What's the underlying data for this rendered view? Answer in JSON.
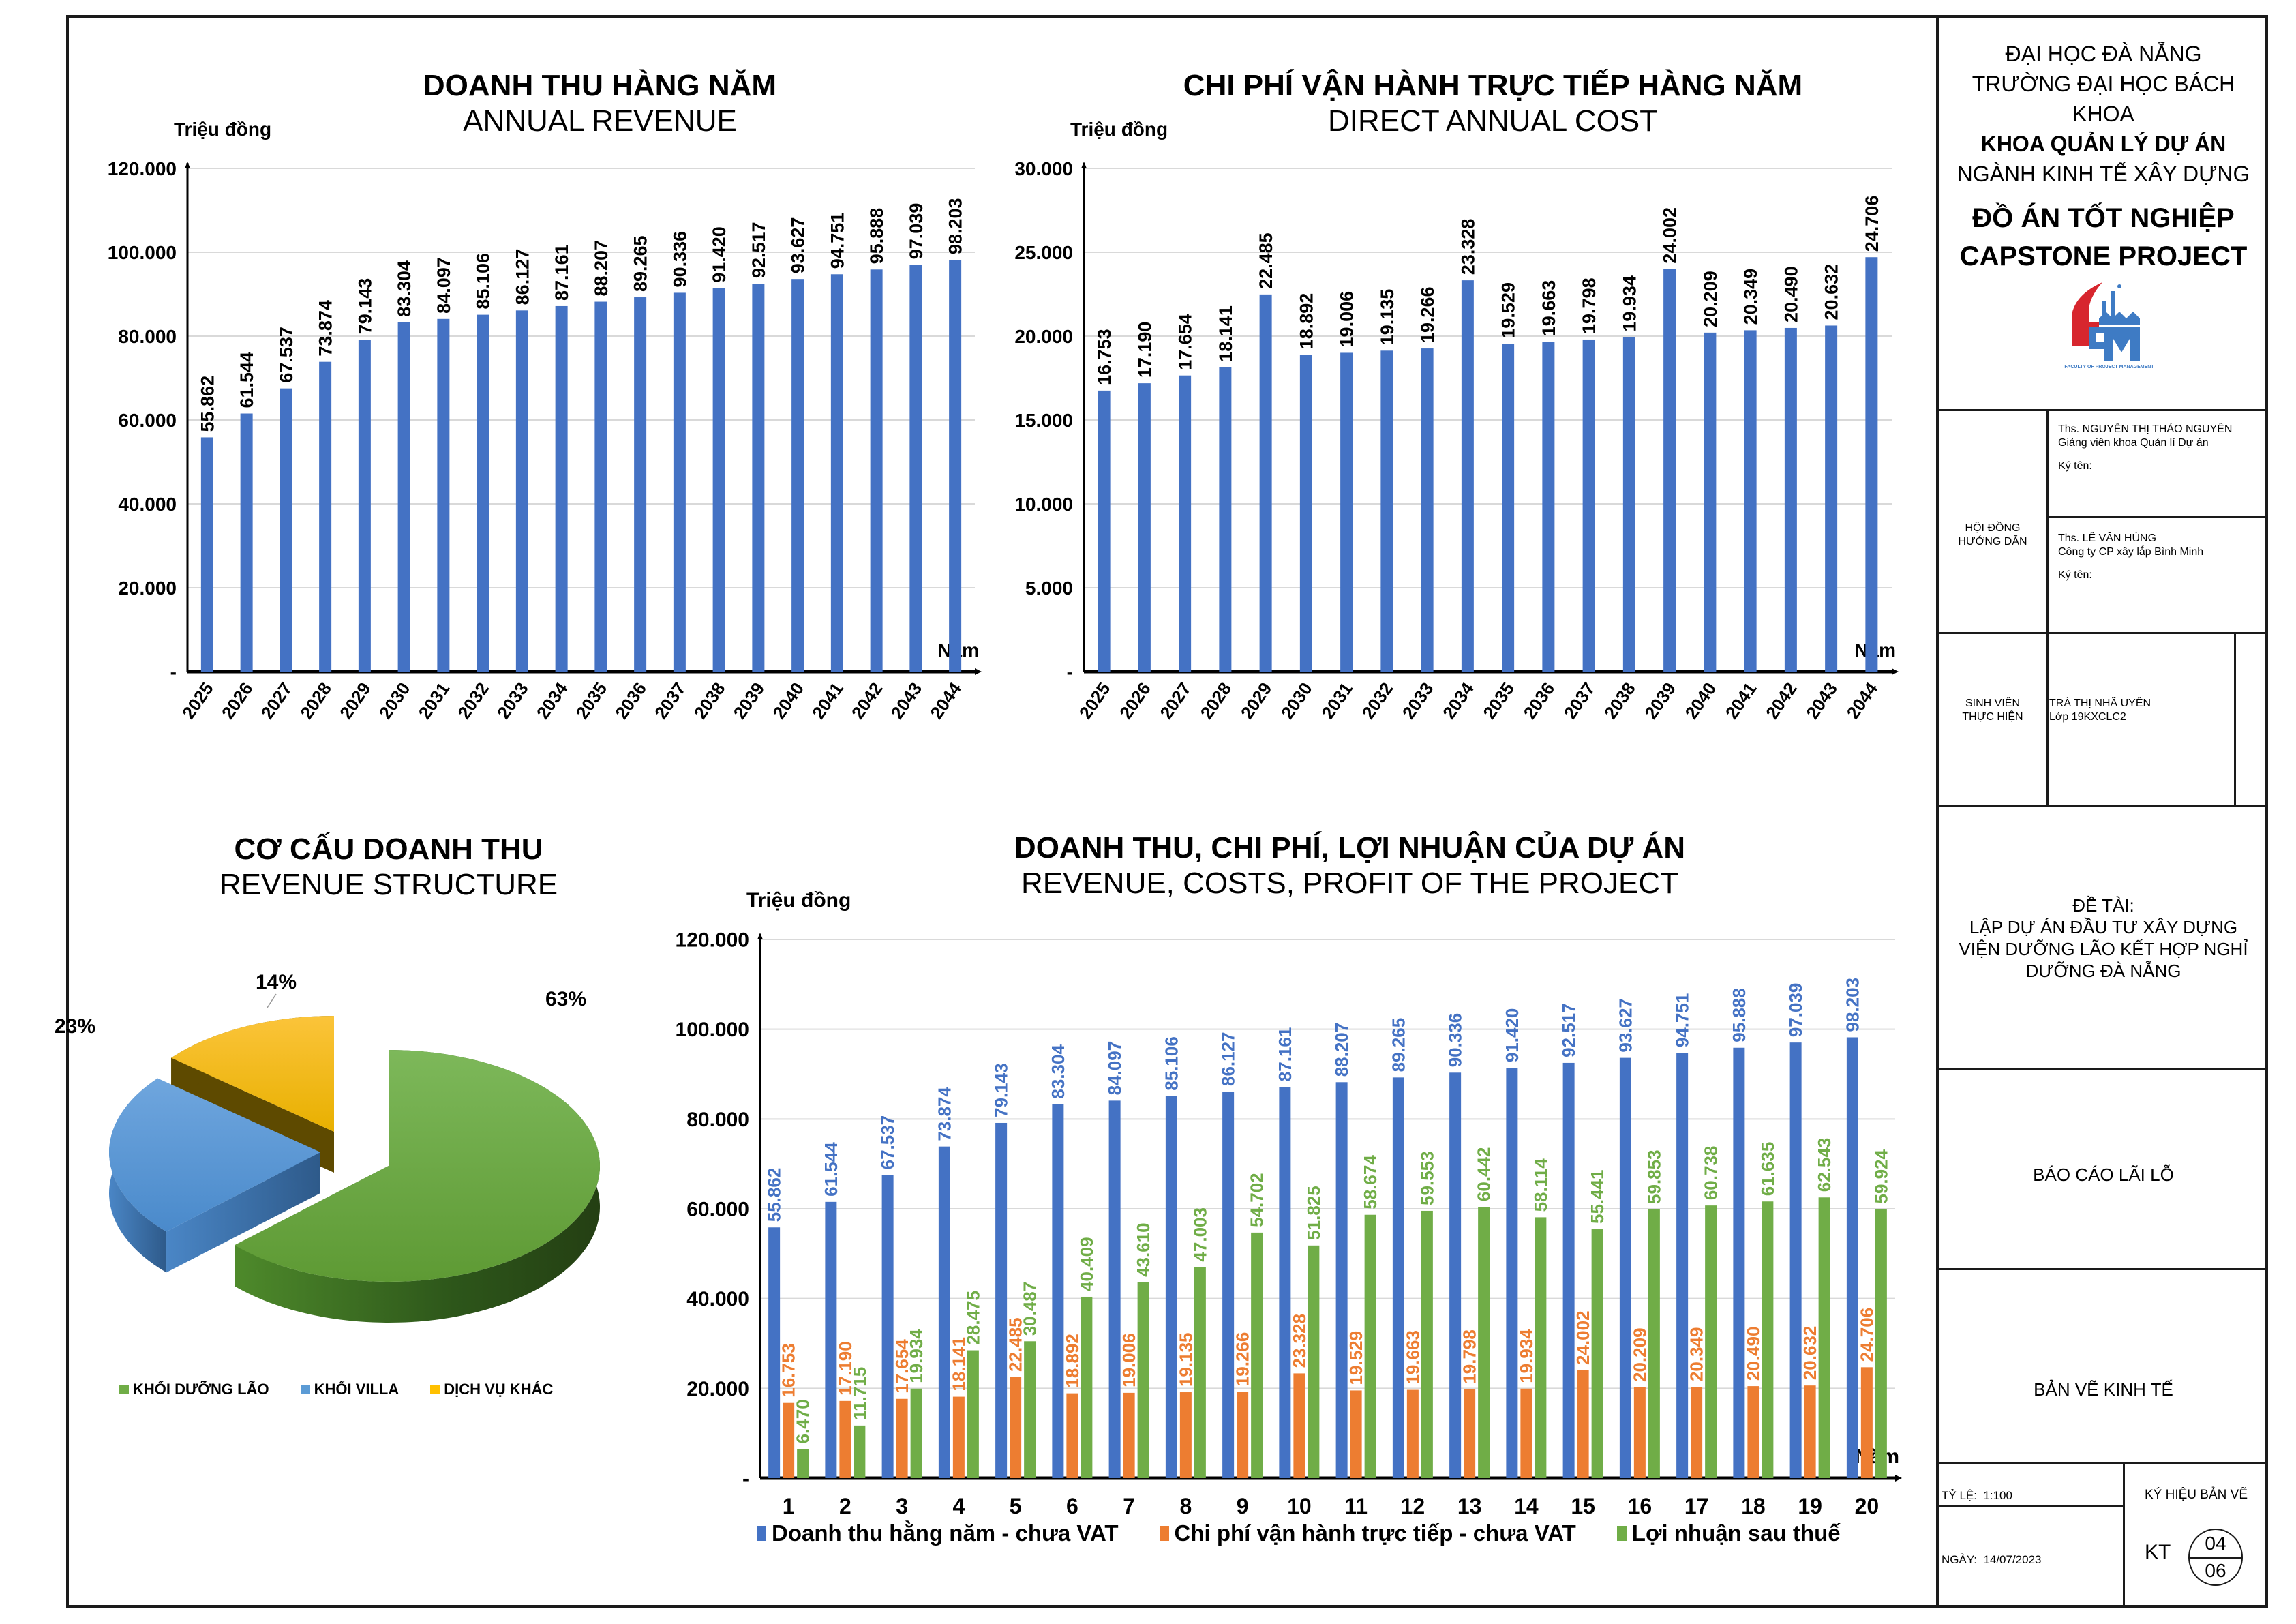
{
  "title_block": {
    "university": "ĐẠI HỌC ĐÀ NẴNG",
    "school": "TRƯỜNG ĐẠI HỌC BÁCH KHOA",
    "faculty": "KHOA QUẢN LÝ DỰ ÁN",
    "major": "NGÀNH KINH TẾ XÂY DỰNG",
    "project_vn": "ĐỒ ÁN TỐT NGHIỆP",
    "project_en": "CAPSTONE PROJECT",
    "logo_caption": "FACULTY OF PROJECT MANAGEMENT",
    "advisors_label_1": "HỘI ĐỒNG",
    "advisors_label_2": "HƯỚNG DẪN",
    "advisor1_name": "Ths. NGUYỄN THỊ THẢO NGUYÊN",
    "advisor1_role": "Giảng viên khoa Quản lí Dự án",
    "advisor1_sign": "Ký tên:",
    "advisor2_name": "Ths. LÊ VĂN HÙNG",
    "advisor2_role": "Công ty CP xây lắp Bình Minh",
    "advisor2_sign": "Ký tên:",
    "student_label_1": "SINH VIÊN",
    "student_label_2": "THỰC HIỆN",
    "student_name": "TRÀ THỊ NHÃ UYÊN",
    "student_class": "Lớp 19KXCLC2",
    "topic_label": "ĐỀ TÀI:",
    "topic_line1": "LẬP DỰ ÁN ĐẦU TƯ XÂY DỰNG",
    "topic_line2": "VIỆN DƯỠNG LÃO KẾT HỢP NGHỈ",
    "topic_line3": "DƯỠNG ĐÀ NẴNG",
    "report_title": "BÁO CÁO LÃI LỖ",
    "drawing_type": "BẢN VẼ KINH TẾ",
    "scale_label": "TỶ LỆ:",
    "scale_value": "1:100",
    "date_label": "NGÀY:",
    "date_value": "14/07/2023",
    "drawing_code_label": "KÝ HIỆU BẢN VẼ",
    "drawing_code_prefix": "KT",
    "sheet_number": "04",
    "sheet_total": "06"
  },
  "chart_data": [
    {
      "id": "annual-revenue",
      "type": "bar",
      "title": "DOANH THU HÀNG NĂM",
      "subtitle": "ANNUAL REVENUE",
      "ylabel": "Triệu đồng",
      "xlabel": "Năm",
      "ylim": [
        0,
        120000
      ],
      "yticks": [
        0,
        20000,
        40000,
        60000,
        80000,
        100000,
        120000
      ],
      "ytick_labels": [
        "-",
        "20.000",
        "40.000",
        "60.000",
        "80.000",
        "100.000",
        "120.000"
      ],
      "grid": true,
      "color": "#4472C4",
      "categories": [
        "2025",
        "2026",
        "2027",
        "2028",
        "2029",
        "2030",
        "2031",
        "2032",
        "2033",
        "2034",
        "2035",
        "2036",
        "2037",
        "2038",
        "2039",
        "2040",
        "2041",
        "2042",
        "2043",
        "2044"
      ],
      "values": [
        55862,
        61544,
        67537,
        73874,
        79143,
        83304,
        84097,
        85106,
        86127,
        87161,
        88207,
        89265,
        90336,
        91420,
        92517,
        93627,
        94751,
        95888,
        97039,
        98203
      ],
      "labels": [
        "55.862",
        "61.544",
        "67.537",
        "73.874",
        "79.143",
        "83.304",
        "84.097",
        "85.106",
        "86.127",
        "87.161",
        "88.207",
        "89.265",
        "90.336",
        "91.420",
        "92.517",
        "93.627",
        "94.751",
        "95.888",
        "97.039",
        "98.203"
      ]
    },
    {
      "id": "direct-annual-cost",
      "type": "bar",
      "title": "CHI PHÍ VẬN HÀNH TRỰC TIẾP HÀNG NĂM",
      "subtitle": "DIRECT ANNUAL COST",
      "ylabel": "Triệu đồng",
      "xlabel": "Năm",
      "ylim": [
        0,
        30000
      ],
      "yticks": [
        0,
        5000,
        10000,
        15000,
        20000,
        25000,
        30000
      ],
      "ytick_labels": [
        "-",
        "5.000",
        "10.000",
        "15.000",
        "20.000",
        "25.000",
        "30.000"
      ],
      "grid": true,
      "color": "#4472C4",
      "categories": [
        "2025",
        "2026",
        "2027",
        "2028",
        "2029",
        "2030",
        "2031",
        "2032",
        "2033",
        "2034",
        "2035",
        "2036",
        "2037",
        "2038",
        "2039",
        "2040",
        "2041",
        "2042",
        "2043",
        "2044"
      ],
      "values": [
        16753,
        17190,
        17654,
        18141,
        22485,
        18892,
        19006,
        19135,
        19266,
        23328,
        19529,
        19663,
        19798,
        19934,
        24002,
        20209,
        20349,
        20490,
        20632,
        24706
      ],
      "labels": [
        "16.753",
        "17.190",
        "17.654",
        "18.141",
        "22.485",
        "18.892",
        "19.006",
        "19.135",
        "19.266",
        "23.328",
        "19.529",
        "19.663",
        "19.798",
        "19.934",
        "24.002",
        "20.209",
        "20.349",
        "20.490",
        "20.632",
        "24.706"
      ]
    },
    {
      "id": "revenue-structure",
      "type": "pie",
      "title": "CƠ CẤU DOANH THU",
      "subtitle": "REVENUE STRUCTURE",
      "legend_position": "bottom",
      "slices": [
        {
          "name": "KHỐI DƯỠNG LÃO",
          "value": 63,
          "label": "63%",
          "color": "#70AD47"
        },
        {
          "name": "KHỐI VILLA",
          "value": 23,
          "label": "23%",
          "color": "#5B9BD5"
        },
        {
          "name": "DỊCH VỤ KHÁC",
          "value": 14,
          "label": "14%",
          "color": "#FFC000"
        }
      ]
    },
    {
      "id": "revenue-costs-profit",
      "type": "bar",
      "title": "DOANH THU, CHI PHÍ, LỢI NHUẬN CỦA DỰ ÁN",
      "subtitle": "REVENUE, COSTS, PROFIT OF THE PROJECT",
      "ylabel": "Triệu đồng",
      "xlabel": "Năm",
      "ylim": [
        0,
        120000
      ],
      "yticks": [
        0,
        20000,
        40000,
        60000,
        80000,
        100000,
        120000
      ],
      "ytick_labels": [
        "-",
        "20.000",
        "40.000",
        "60.000",
        "80.000",
        "100.000",
        "120.000"
      ],
      "grid": true,
      "legend_position": "bottom",
      "categories": [
        "1",
        "2",
        "3",
        "4",
        "5",
        "6",
        "7",
        "8",
        "9",
        "10",
        "11",
        "12",
        "13",
        "14",
        "15",
        "16",
        "17",
        "18",
        "19",
        "20"
      ],
      "series": [
        {
          "name": "Doanh thu hằng năm - chưa VAT",
          "color": "#4472C4",
          "values": [
            55862,
            61544,
            67537,
            73874,
            79143,
            83304,
            84097,
            85106,
            86127,
            87161,
            88207,
            89265,
            90336,
            91420,
            92517,
            93627,
            94751,
            95888,
            97039,
            98203
          ],
          "labels": [
            "55.862",
            "61.544",
            "67.537",
            "73.874",
            "79.143",
            "83.304",
            "84.097",
            "85.106",
            "86.127",
            "87.161",
            "88.207",
            "89.265",
            "90.336",
            "91.420",
            "92.517",
            "93.627",
            "94.751",
            "95.888",
            "97.039",
            "98.203"
          ]
        },
        {
          "name": "Chi phí vận hành trực tiếp - chưa VAT",
          "color": "#ED7D31",
          "values": [
            16753,
            17190,
            17654,
            18141,
            22485,
            18892,
            19006,
            19135,
            19266,
            23328,
            19529,
            19663,
            19798,
            19934,
            24002,
            20209,
            20349,
            20490,
            20632,
            24706
          ],
          "labels": [
            "16.753",
            "17.190",
            "17.654",
            "18.141",
            "22.485",
            "18.892",
            "19.006",
            "19.135",
            "19.266",
            "23.328",
            "19.529",
            "19.663",
            "19.798",
            "19.934",
            "24.002",
            "20.209",
            "20.349",
            "20.490",
            "20.632",
            "24.706"
          ]
        },
        {
          "name": "Lợi nhuận sau thuế",
          "color": "#70AD47",
          "values": [
            6470,
            11715,
            19934,
            28475,
            30487,
            40409,
            43610,
            47003,
            54702,
            51825,
            58674,
            59553,
            60442,
            58114,
            55441,
            59853,
            60738,
            61635,
            62543,
            59924
          ],
          "labels": [
            "6.470",
            "11.715",
            "19.934",
            "28.475",
            "30.487",
            "40.409",
            "43.610",
            "47.003",
            "54.702",
            "51.825",
            "58.674",
            "59.553",
            "60.442",
            "58.114",
            "55.441",
            "59.853",
            "60.738",
            "61.635",
            "62.543",
            "59.924"
          ]
        }
      ]
    }
  ]
}
